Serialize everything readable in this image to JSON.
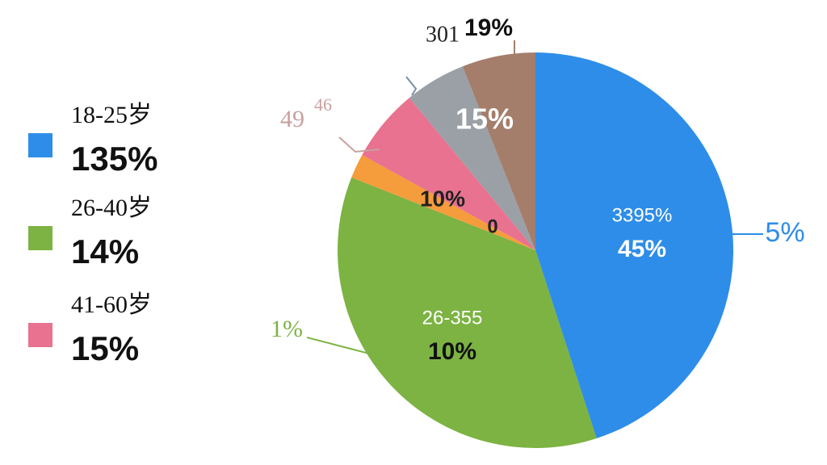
{
  "chart_data": {
    "type": "pie",
    "categories": [
      "18-25岁",
      "26-40岁",
      null,
      "41-60岁",
      null,
      null
    ],
    "values": [
      45,
      36,
      2,
      6,
      5,
      6
    ],
    "colors": [
      "#2e8de8",
      "#7cb342",
      "#f59c3c",
      "#e8728f",
      "#9aa0a6",
      "#a47e6b"
    ],
    "legend_texts": [
      "135%",
      "14%",
      "15%"
    ],
    "inside_labels": [
      "3395%",
      "45%",
      "26-355",
      "10%",
      "15%",
      "10%",
      "0"
    ],
    "outside_labels": [
      "301",
      "19%",
      "49",
      "46",
      "1%",
      "5%"
    ]
  }
}
